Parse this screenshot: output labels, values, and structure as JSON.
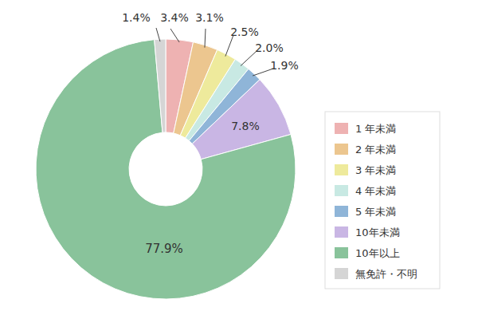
{
  "chart_data": {
    "type": "pie",
    "categories": [
      "1 年未満",
      "2 年未満",
      "3 年未満",
      "4 年未満",
      "5 年未満",
      "10年未満",
      "10年以上",
      "無免許・不明"
    ],
    "values": [
      3.4,
      3.1,
      2.5,
      2.0,
      1.9,
      7.8,
      77.9,
      1.4
    ],
    "value_labels": [
      "3.4%",
      "3.1%",
      "2.5%",
      "2.0%",
      "1.9%",
      "7.8%",
      "77.9%",
      "1.4%"
    ],
    "colors": [
      "#eeb2b2",
      "#ecc68f",
      "#eeea9c",
      "#c8e9e3",
      "#8fb5d8",
      "#c9b6e4",
      "#89c39b",
      "#d5d5d5"
    ],
    "data_labels": true,
    "legend": "right"
  }
}
